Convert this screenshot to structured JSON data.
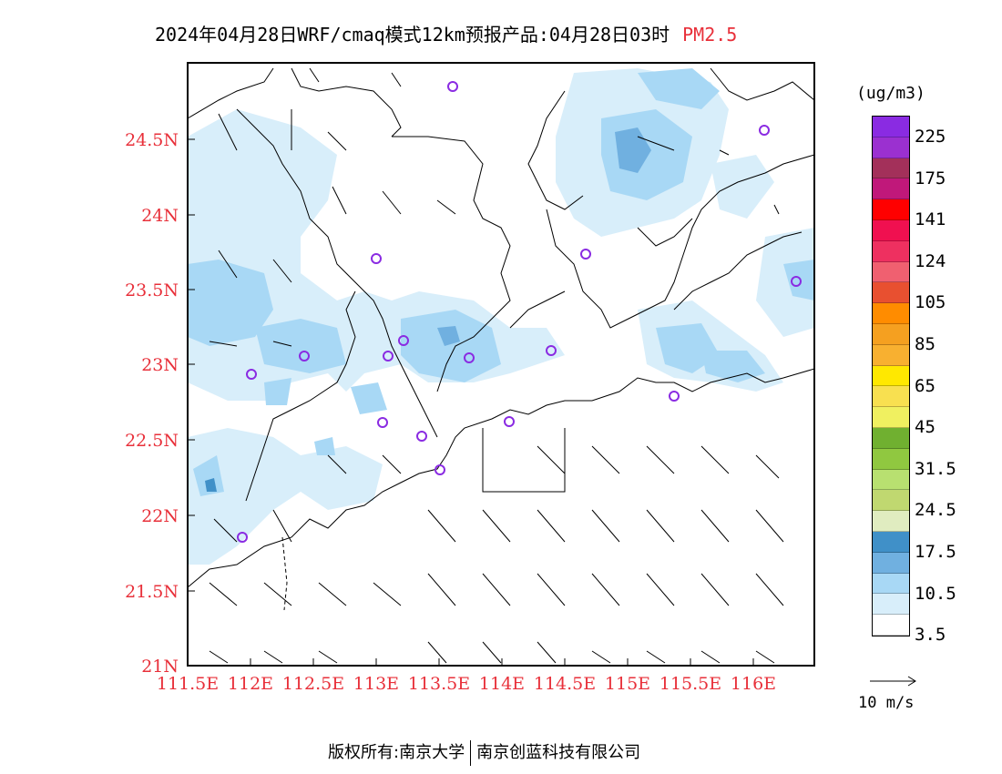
{
  "title": {
    "main": "2024年04月28日WRF/cmaq模式12km预报产品:04月28日03时",
    "pollutant": "PM2.5",
    "pollutant_color": "#e8303a"
  },
  "axes": {
    "x_ticks": [
      "111.5E",
      "112E",
      "112.5E",
      "113E",
      "113.5E",
      "114E",
      "114.5E",
      "115E",
      "115.5E",
      "116E"
    ],
    "y_ticks": [
      "24.5N",
      "24N",
      "23.5N",
      "23N",
      "22.5N",
      "22N",
      "21.5N",
      "21N"
    ],
    "tick_color": "#e8303a"
  },
  "legend": {
    "unit": "(ug/m3)",
    "colors": [
      "#8a2be2",
      "#9b30d0",
      "#a3305a",
      "#c0187a",
      "#ff0000",
      "#f01050",
      "#ee3060",
      "#f06070",
      "#e85030",
      "#ff8c00",
      "#f5a020",
      "#f8b030",
      "#ffe800",
      "#f8e050",
      "#f0f060",
      "#70b030",
      "#90c840",
      "#b8e070",
      "#c0d870",
      "#e0ecc0",
      "#4090c8",
      "#70b0e0",
      "#a8d8f5",
      "#d8eefa",
      "#ffffff"
    ],
    "labels": [
      "225",
      "175",
      "141",
      "124",
      "105",
      "85",
      "65",
      "45",
      "31.5",
      "24.5",
      "17.5",
      "10.5",
      "3.5"
    ]
  },
  "vector_reference": {
    "label": "10 m/s"
  },
  "footer": {
    "left": "版权所有:南京大学",
    "right": "南京创蓝科技有限公司"
  }
}
